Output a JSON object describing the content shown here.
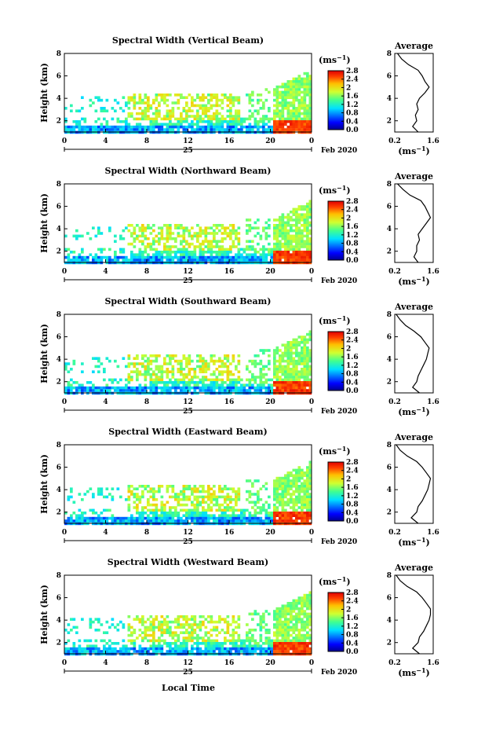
{
  "figure": {
    "x_label": "Local Time",
    "date_day": "25",
    "date_suffix": "Feb 2020",
    "y_label": "Height (km)",
    "colorbar_unit": "(ms",
    "colorbar_unit_sup": "−1",
    "colorbar_unit_close": ")",
    "profile_title": "Average",
    "profile_unit": "(ms",
    "profile_unit_sup": "−1",
    "profile_unit_close": ")"
  },
  "chart_data": [
    {
      "type": "heatmap",
      "title": "Spectral Width (Vertical Beam)",
      "ylabel": "Height (km)",
      "xlabel": "",
      "x_ticks": [
        "0",
        "4",
        "8",
        "12",
        "16",
        "20",
        "0"
      ],
      "y_ticks": [
        "2",
        "4",
        "6",
        "8"
      ],
      "xlim": [
        0,
        24
      ],
      "ylim": [
        1,
        8
      ],
      "colorbar": {
        "ticks": [
          "2.8",
          "2.4",
          "2",
          "1.6",
          "1.2",
          "0.8",
          "0.4",
          "0.0"
        ],
        "range": [
          0.0,
          2.8
        ]
      },
      "profile": {
        "title": "Average",
        "xlim": [
          0.2,
          1.6
        ],
        "x_ticks": [
          "0.2",
          "1.6"
        ],
        "y_ticks": [
          "2",
          "4",
          "6",
          "8"
        ],
        "height_km": [
          1.0,
          1.5,
          2.0,
          2.5,
          3.0,
          3.5,
          4.0,
          4.5,
          5.0,
          5.5,
          6.0,
          6.5,
          7.0,
          7.5,
          8.0
        ],
        "width": [
          1.05,
          0.85,
          1.0,
          0.95,
          1.05,
          1.0,
          1.1,
          1.3,
          1.45,
          1.3,
          1.2,
          1.05,
          0.7,
          0.45,
          0.3
        ]
      }
    },
    {
      "type": "heatmap",
      "title": "Spectral Width (Northward Beam)",
      "ylabel": "Height (km)",
      "xlabel": "",
      "x_ticks": [
        "0",
        "4",
        "8",
        "12",
        "16",
        "20",
        "0"
      ],
      "y_ticks": [
        "2",
        "4",
        "6",
        "8"
      ],
      "xlim": [
        0,
        24
      ],
      "ylim": [
        1,
        8
      ],
      "colorbar": {
        "ticks": [
          "2.8",
          "2.4",
          "2",
          "1.6",
          "1.2",
          "0.8",
          "0.4",
          "0.0"
        ],
        "range": [
          0.0,
          2.8
        ]
      },
      "profile": {
        "title": "Average",
        "xlim": [
          0.2,
          1.6
        ],
        "x_ticks": [
          "0.2",
          "1.6"
        ],
        "y_ticks": [
          "2",
          "4",
          "6",
          "8"
        ],
        "height_km": [
          1.0,
          1.5,
          2.0,
          2.5,
          3.0,
          3.5,
          4.0,
          4.5,
          5.0,
          5.5,
          6.0,
          6.5,
          7.0,
          7.5,
          8.0
        ],
        "width": [
          1.05,
          0.9,
          1.0,
          1.0,
          1.1,
          1.05,
          1.2,
          1.35,
          1.5,
          1.4,
          1.3,
          1.15,
          0.75,
          0.5,
          0.3
        ]
      }
    },
    {
      "type": "heatmap",
      "title": "Spectral Width (Southward Beam)",
      "ylabel": "Height (km)",
      "xlabel": "",
      "x_ticks": [
        "0",
        "4",
        "8",
        "12",
        "16",
        "20",
        "0"
      ],
      "y_ticks": [
        "2",
        "4",
        "6",
        "8"
      ],
      "xlim": [
        0,
        24
      ],
      "ylim": [
        1,
        8
      ],
      "colorbar": {
        "ticks": [
          "2.8",
          "2.4",
          "2",
          "1.6",
          "1.2",
          "0.8",
          "0.4",
          "0.0"
        ],
        "range": [
          0.0,
          2.8
        ]
      },
      "profile": {
        "title": "Average",
        "xlim": [
          0.2,
          1.6
        ],
        "x_ticks": [
          "0.2",
          "1.6"
        ],
        "y_ticks": [
          "2",
          "4",
          "6",
          "8"
        ],
        "height_km": [
          1.0,
          1.5,
          2.0,
          2.5,
          3.0,
          3.5,
          4.0,
          4.5,
          5.0,
          5.5,
          6.0,
          6.5,
          7.0,
          7.5,
          8.0
        ],
        "width": [
          1.1,
          0.85,
          1.0,
          1.05,
          1.15,
          1.25,
          1.35,
          1.4,
          1.45,
          1.3,
          1.15,
          0.9,
          0.6,
          0.4,
          0.25
        ]
      }
    },
    {
      "type": "heatmap",
      "title": "Spectral Width (Eastward Beam)",
      "ylabel": "Height (km)",
      "xlabel": "",
      "x_ticks": [
        "0",
        "4",
        "8",
        "12",
        "16",
        "20",
        "0"
      ],
      "y_ticks": [
        "2",
        "4",
        "6",
        "8"
      ],
      "xlim": [
        0,
        24
      ],
      "ylim": [
        1,
        8
      ],
      "colorbar": {
        "ticks": [
          "2.8",
          "2.4",
          "2",
          "1.6",
          "1.2",
          "0.8",
          "0.4",
          "0.0"
        ],
        "range": [
          0.0,
          2.8
        ]
      },
      "profile": {
        "title": "Average",
        "xlim": [
          0.2,
          1.6
        ],
        "x_ticks": [
          "0.2",
          "1.6"
        ],
        "y_ticks": [
          "2",
          "4",
          "6",
          "8"
        ],
        "height_km": [
          1.0,
          1.5,
          2.0,
          2.5,
          3.0,
          3.5,
          4.0,
          4.5,
          5.0,
          5.5,
          6.0,
          6.5,
          7.0,
          7.5,
          8.0
        ],
        "width": [
          1.05,
          0.8,
          1.0,
          1.05,
          1.2,
          1.3,
          1.4,
          1.45,
          1.5,
          1.35,
          1.2,
          1.0,
          0.65,
          0.4,
          0.25
        ]
      }
    },
    {
      "type": "heatmap",
      "title": "Spectral Width (Westward Beam)",
      "ylabel": "Height (km)",
      "xlabel": "Local Time",
      "x_ticks": [
        "0",
        "4",
        "8",
        "12",
        "16",
        "20",
        "0"
      ],
      "y_ticks": [
        "2",
        "4",
        "6",
        "8"
      ],
      "xlim": [
        0,
        24
      ],
      "ylim": [
        1,
        8
      ],
      "colorbar": {
        "ticks": [
          "2.8",
          "2.4",
          "2",
          "1.6",
          "1.2",
          "0.8",
          "0.4",
          "0.0"
        ],
        "range": [
          0.0,
          2.8
        ]
      },
      "profile": {
        "title": "Average",
        "xlim": [
          0.2,
          1.6
        ],
        "x_ticks": [
          "0.2",
          "1.6"
        ],
        "y_ticks": [
          "2",
          "4",
          "6",
          "8"
        ],
        "height_km": [
          1.0,
          1.5,
          2.0,
          2.5,
          3.0,
          3.5,
          4.0,
          4.5,
          5.0,
          5.5,
          6.0,
          6.5,
          7.0,
          7.5,
          8.0
        ],
        "width": [
          1.1,
          0.85,
          1.05,
          1.1,
          1.25,
          1.35,
          1.45,
          1.5,
          1.5,
          1.35,
          1.2,
          1.0,
          0.65,
          0.4,
          0.25
        ]
      }
    }
  ]
}
